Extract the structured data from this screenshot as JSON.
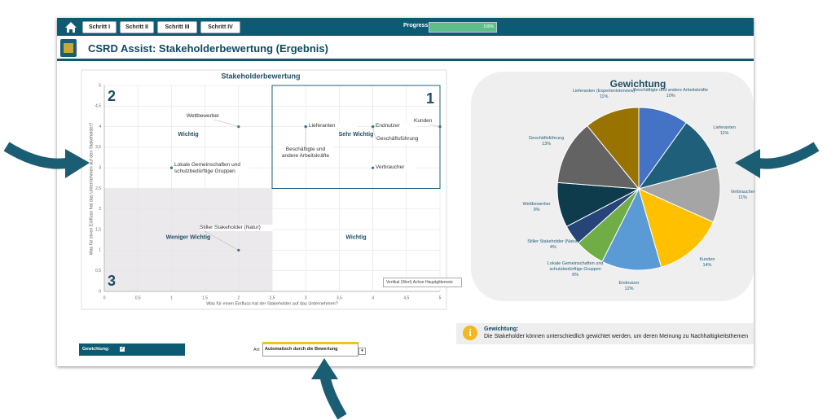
{
  "toolbar": {
    "buttons": [
      "Schritt I",
      "Schritt II",
      "Schritt III",
      "Schritt IV"
    ]
  },
  "progress": {
    "label": "Progress:",
    "value": 100,
    "value_label": "100%"
  },
  "header": {
    "title": "CSRD Assist: Stakeholderbewertung (Ergebnis)"
  },
  "chart_data": [
    {
      "type": "scatter",
      "title": "Stakeholderbewertung",
      "x_label": "Was für einen Einfluss hat der Stakeholder auf das Unternehmen?",
      "y_label": "Was für einen Einfluss hat das Unternehmen auf den Stakeholder?",
      "x": [
        2,
        3,
        3,
        4,
        4,
        5,
        4,
        1,
        2
      ],
      "values": [
        4,
        4,
        4,
        4,
        4,
        4,
        3,
        3,
        1
      ],
      "point_labels": [
        "Wettbewerber",
        "Lieferanten",
        "Beschäftigte und andere Arbeitskräfte",
        "Endnutzer",
        "Geschäftsführung",
        "Kunden",
        "Verbraucher",
        "Lokale Gemeinschaften und schutzbedürftige Gruppen",
        "Stiller Stakeholder (Natur)"
      ],
      "color": "#2f6f8f",
      "xlim": [
        0,
        5
      ],
      "ylim": [
        0,
        5
      ],
      "xticks": [
        0,
        {
          "value": 0.5,
          "label": "0,5"
        },
        1,
        {
          "value": 1.5,
          "label": "1,5"
        },
        2,
        {
          "value": 2.5,
          "label": "2,5"
        },
        3,
        {
          "value": 3.5,
          "label": "3,5"
        },
        4,
        {
          "value": 4.5,
          "label": "4,5"
        },
        5
      ],
      "yticks": [
        0,
        {
          "value": 0.5,
          "label": "0,5"
        },
        1,
        {
          "value": 1.5,
          "label": "1,5"
        },
        2,
        {
          "value": 2.5,
          "label": "2,5"
        },
        3,
        {
          "value": 3.5,
          "label": "3,5"
        },
        4,
        {
          "value": 4.5,
          "label": "4,5"
        },
        5
      ],
      "grid": true,
      "quadrants": [
        {
          "number": "2",
          "label": "Wichtig"
        },
        {
          "number": "1",
          "label": "Sehr Wichtig"
        },
        {
          "number": "3",
          "label": "Weniger Wichtig"
        },
        {
          "label": "Wichtig"
        }
      ],
      "tooltip": "Vertikal (Wert) Achse Hauptgitternetz"
    },
    {
      "type": "pie",
      "title": "Gewichtung",
      "categories": [
        "Beschäftigte und andere Arbeitskräfte",
        "Lieferanten",
        "Verbraucher",
        "Kunden",
        "Endnutzer",
        "Lokale Gemeinschaften und schutzbedürftige Gruppen",
        "Stiller Stakeholder (Natur)",
        "Wettbewerber",
        "Geschäftsführung",
        "Lieferanten (Experteninterview)"
      ],
      "values": [
        10,
        11,
        11,
        14,
        12,
        6,
        4,
        9,
        13,
        11
      ],
      "value_labels": [
        "10%",
        "11%",
        "11%",
        "14%",
        "12%",
        "6%",
        "4%",
        "9%",
        "13%",
        "11%"
      ],
      "colors": [
        "#4472c4",
        "#1f5f7a",
        "#a5a5a5",
        "#ffc000",
        "#5b9bd5",
        "#70ad47",
        "#264478",
        "#0e3c4d",
        "#636363",
        "#997300"
      ]
    }
  ],
  "info": {
    "title": "Gewichtung:",
    "text": "Die Stakeholder können unterschiedlich gewichtet werden, um deren Meinung zu Nachhaltigkeitsthemen"
  },
  "controls": {
    "weighting_label": "Gewichtung:",
    "type_label": "Art:",
    "type_value": "Automatisch durch die Bewertung"
  }
}
